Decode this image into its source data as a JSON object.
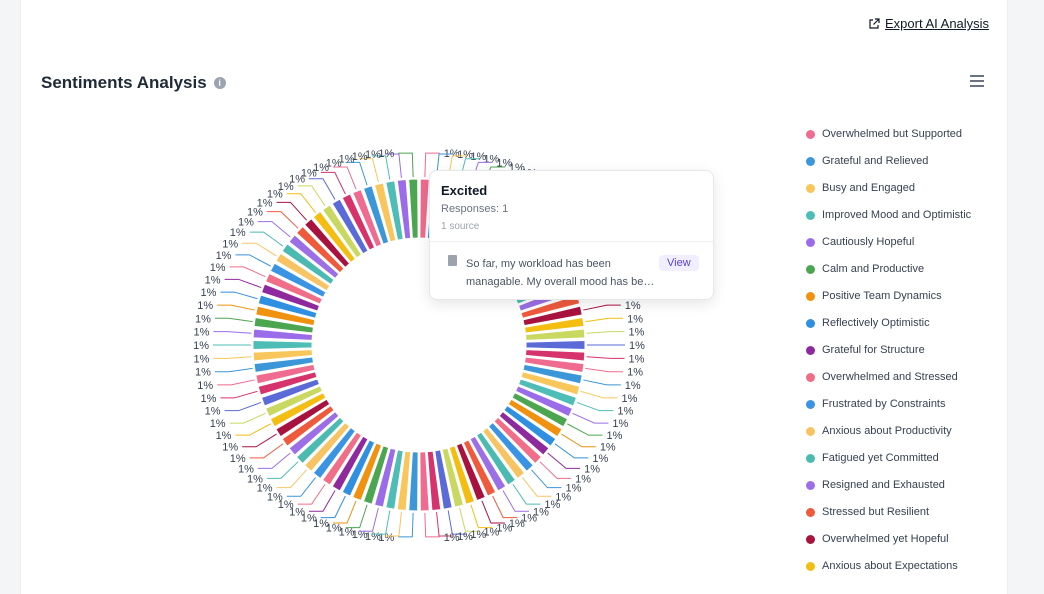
{
  "header": {
    "export_label": "Export AI Analysis",
    "title": "Sentiments Analysis",
    "info_icon": "info-icon",
    "menu_icon": "hamburger-menu-icon"
  },
  "tooltip": {
    "title": "Excited",
    "responses": "Responses: 1",
    "sources": "1 source",
    "excerpt": "So far, my workload has been managable. My overall mood has be…",
    "view_label": "View"
  },
  "legend": [
    {
      "label": "Overwhelmed but Supported",
      "color": "#ef6b8f"
    },
    {
      "label": "Grateful and Relieved",
      "color": "#3b97d8"
    },
    {
      "label": "Busy and Engaged",
      "color": "#f8c65a"
    },
    {
      "label": "Improved Mood and Optimistic",
      "color": "#4dbdb6"
    },
    {
      "label": "Cautiously Hopeful",
      "color": "#9b6cea"
    },
    {
      "label": "Calm and Productive",
      "color": "#4ba64f"
    },
    {
      "label": "Positive Team Dynamics",
      "color": "#f0910f"
    },
    {
      "label": "Reflectively Optimistic",
      "color": "#2f8fe0"
    },
    {
      "label": "Grateful for Structure",
      "color": "#8e2a9e"
    },
    {
      "label": "Overwhelmed and Stressed",
      "color": "#f06e88"
    },
    {
      "label": "Frustrated by Constraints",
      "color": "#3a93e3"
    },
    {
      "label": "Anxious about Productivity",
      "color": "#f8c463"
    },
    {
      "label": "Fatigued yet Committed",
      "color": "#4bbbb2"
    },
    {
      "label": "Resigned and Exhausted",
      "color": "#9c6fe6"
    },
    {
      "label": "Stressed but Resilient",
      "color": "#ef5a3d"
    },
    {
      "label": "Overwhelmed yet Hopeful",
      "color": "#a8123f"
    },
    {
      "label": "Anxious about Expectations",
      "color": "#f4bd12"
    }
  ],
  "chart_data": {
    "type": "pie",
    "variant": "donut",
    "highlighted_slice": "Excited",
    "labels_note": "percent labels",
    "values": [
      1,
      1,
      1,
      1,
      1,
      1,
      1,
      1,
      3,
      3,
      1,
      1,
      1,
      1,
      1,
      1,
      1,
      1,
      1,
      1,
      1,
      1,
      1,
      1,
      1,
      1,
      1,
      1,
      1,
      1,
      1,
      1,
      1,
      1,
      1,
      1,
      1,
      1,
      1,
      1,
      1,
      1,
      1,
      1,
      1,
      1,
      1,
      1,
      1,
      1,
      1,
      1,
      1,
      1,
      1,
      1,
      1,
      1,
      1,
      1,
      1,
      1,
      1,
      1,
      1,
      1,
      1,
      1,
      1,
      1,
      1,
      1,
      1,
      1,
      1,
      1,
      1,
      1,
      1,
      1,
      1,
      1,
      1,
      1,
      1,
      1
    ],
    "slice_labels": [
      "1%",
      "1%",
      "1%",
      "1%",
      "1%",
      "1%",
      "1%",
      "1%",
      "3%",
      "3%",
      "1%",
      "1%",
      "1%",
      "1%",
      "1%",
      "1%",
      "1%",
      "1%",
      "1%",
      "1%",
      "1%",
      "1%",
      "1%",
      "1%",
      "1%",
      "1%",
      "1%",
      "1%",
      "1%",
      "1%",
      "1%",
      "1%",
      "1%",
      "1%",
      "1%",
      "1%",
      "1%",
      "1%",
      "1%",
      "1%",
      "1%",
      "1%",
      "1%",
      "1%",
      "1%",
      "1%",
      "1%",
      "1%",
      "1%",
      "1%",
      "1%",
      "1%",
      "1%",
      "1%",
      "1%",
      "1%",
      "1%",
      "1%",
      "1%",
      "1%",
      "1%",
      "1%",
      "1%",
      "1%",
      "1%",
      "1%",
      "1%",
      "1%",
      "1%",
      "1%",
      "1%",
      "1%",
      "1%",
      "1%",
      "1%",
      "1%",
      "1%",
      "1%",
      "1%",
      "1%",
      "1%",
      "1%",
      "1%",
      "1%",
      "1%",
      "1%"
    ],
    "palette": [
      "#ef6b8f",
      "#3b97d8",
      "#f8c65a",
      "#4dbdb6",
      "#9b6cea",
      "#4ba64f",
      "#f0910f",
      "#2f8fe0",
      "#8e2a9e",
      "#f06e88",
      "#3a93e3",
      "#f8c463",
      "#4bbbb2",
      "#9c6fe6",
      "#ef5a3d",
      "#a8123f",
      "#f4bd12",
      "#c9d860",
      "#5a6bd8",
      "#d6336c"
    ]
  }
}
